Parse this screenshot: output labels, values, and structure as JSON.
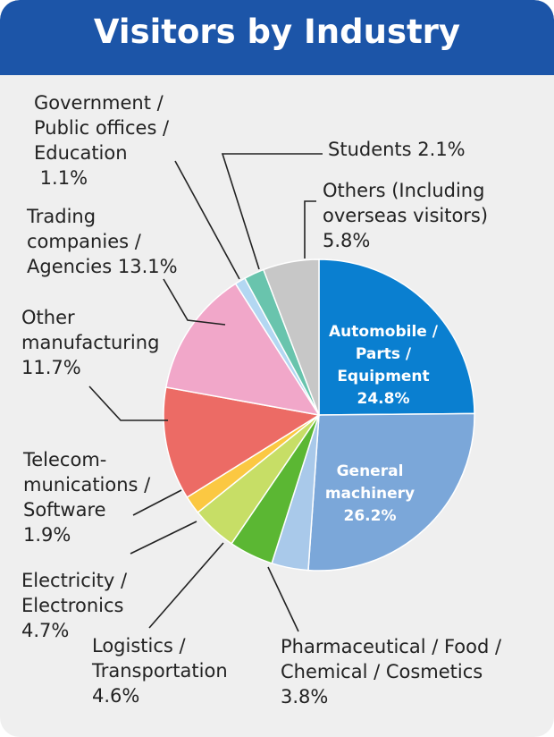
{
  "chart_data": {
    "type": "pie",
    "title": "Visitors by Industry",
    "slices": [
      {
        "label": [
          "Automobile /",
          "Parts /",
          "Equipment",
          "24.8%"
        ],
        "value": 24.8,
        "color": "#0a7fd0"
      },
      {
        "label": [
          "General",
          "machinery",
          "26.2%"
        ],
        "value": 26.2,
        "color": "#7ba7d9"
      },
      {
        "label": [
          "Pharmaceutical / Food /",
          "Chemical / Cosmetics",
          "3.8%"
        ],
        "value": 3.8,
        "color": "#a9c9ea"
      },
      {
        "label": [
          "Logistics /",
          "Transportation",
          "4.6%"
        ],
        "value": 4.6,
        "color": "#5bb733"
      },
      {
        "label": [
          "Electricity /",
          "Electronics",
          "4.7%"
        ],
        "value": 4.7,
        "color": "#c7de66"
      },
      {
        "label": [
          "Telecom-",
          "munications /",
          "Software",
          "1.9%"
        ],
        "value": 1.9,
        "color": "#fbc842"
      },
      {
        "label": [
          "Other",
          "manufacturing",
          "11.7%"
        ],
        "value": 11.7,
        "color": "#ec6b65"
      },
      {
        "label": [
          "Trading",
          "companies /",
          "Agencies 13.1%"
        ],
        "value": 13.1,
        "color": "#f1a7c9"
      },
      {
        "label": [
          "Government /",
          "Public offices /",
          "Education",
          " 1.1%"
        ],
        "value": 1.1,
        "color": "#b3d7f2"
      },
      {
        "label": [
          "Students 2.1%"
        ],
        "value": 2.1,
        "color": "#69c4ad"
      },
      {
        "label": [
          "Others (Including",
          "overseas visitors)",
          "5.8%"
        ],
        "value": 5.8,
        "color": "#c7c7c7"
      }
    ]
  }
}
